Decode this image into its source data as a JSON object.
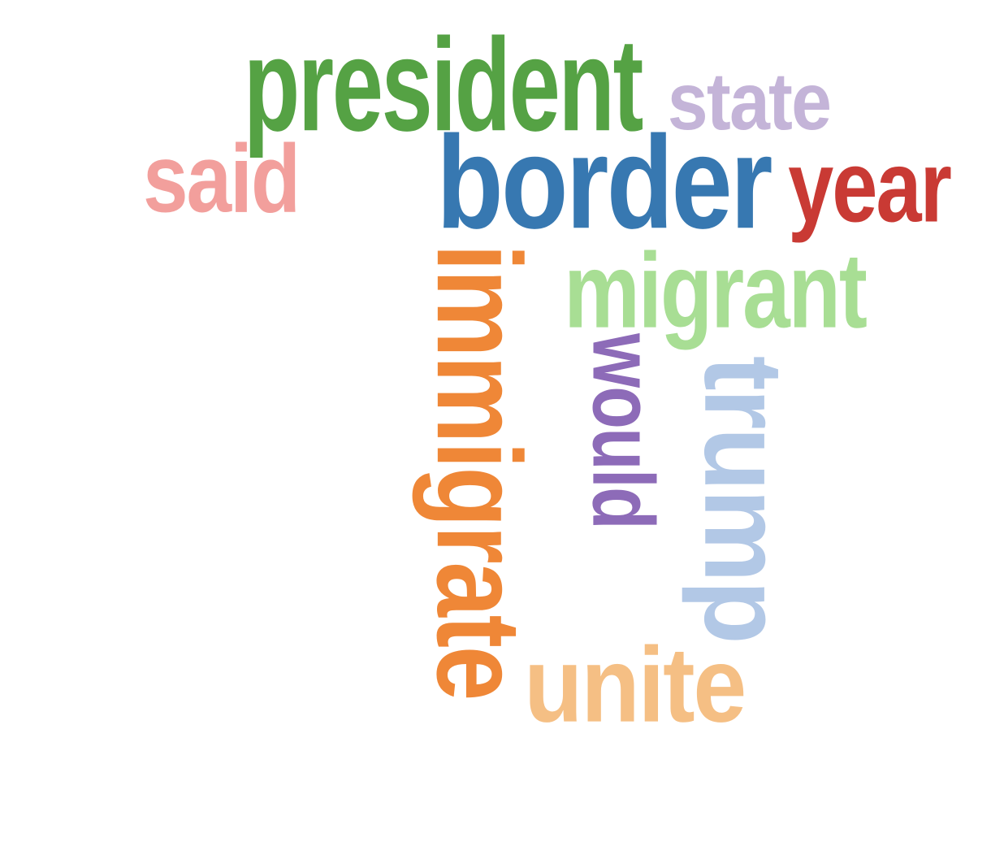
{
  "word_cloud": {
    "words": [
      {
        "id": "president",
        "text": "president",
        "color": "#55a244",
        "orientation": "horizontal"
      },
      {
        "id": "state",
        "text": "state",
        "color": "#c4b4d8",
        "orientation": "horizontal"
      },
      {
        "id": "said",
        "text": "said",
        "color": "#f29f9c",
        "orientation": "horizontal"
      },
      {
        "id": "border",
        "text": "border",
        "color": "#3778b1",
        "orientation": "horizontal"
      },
      {
        "id": "year",
        "text": "year",
        "color": "#c93a34",
        "orientation": "horizontal"
      },
      {
        "id": "migrant",
        "text": "migrant",
        "color": "#a8de94",
        "orientation": "horizontal"
      },
      {
        "id": "immigrate",
        "text": "immigrate",
        "color": "#ef8737",
        "orientation": "vertical"
      },
      {
        "id": "would",
        "text": "would",
        "color": "#8d6bb8",
        "orientation": "vertical"
      },
      {
        "id": "trump",
        "text": "trump",
        "color": "#b2c8e6",
        "orientation": "vertical"
      },
      {
        "id": "unite",
        "text": "unite",
        "color": "#f5bf84",
        "orientation": "horizontal"
      }
    ]
  }
}
